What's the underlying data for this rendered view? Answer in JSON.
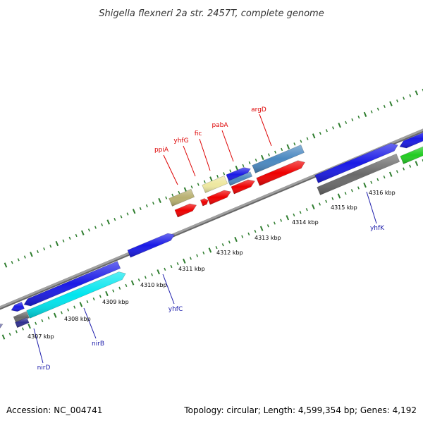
{
  "title": "Shigella flexneri 2a str. 2457T, complete genome",
  "footer": {
    "accession": "Accession: NC_004741",
    "summary": "Topology: circular; Length: 4,599,354 bp; Genes: 4,192"
  },
  "colors": {
    "backbone": "#8a8a8a",
    "ruler_ticks": "#2e7d2e",
    "label_forward": "#dd0000",
    "label_reverse": "#1a1aaa",
    "blue": "#1a1ae6",
    "red": "#ee0000",
    "cyan": "#00e5ee",
    "khaki": "#b8b070",
    "light_yellow": "#eee8a0",
    "steel_blue": "#4a88c0",
    "gray": "#6a6a6a",
    "green": "#22cc22",
    "slate": "#6a6aa8",
    "navy": "#303090"
  },
  "ruler_labels": [
    "4307 kbp",
    "4308 kbp",
    "4309 kbp",
    "4310 kbp",
    "4311 kbp",
    "4312 kbp",
    "4313 kbp",
    "4314 kbp",
    "4315 kbp",
    "4316 kbp"
  ],
  "gene_labels": [
    {
      "text": "ppiA",
      "strand": "forward"
    },
    {
      "text": "yhfG",
      "strand": "forward"
    },
    {
      "text": "fic",
      "strand": "forward"
    },
    {
      "text": "pabA",
      "strand": "forward"
    },
    {
      "text": "argD",
      "strand": "forward"
    },
    {
      "text": "nirD",
      "strand": "reverse"
    },
    {
      "text": "nirB",
      "strand": "reverse"
    },
    {
      "text": "yhfC",
      "strand": "reverse"
    },
    {
      "text": "yhfK",
      "strand": "reverse"
    }
  ]
}
